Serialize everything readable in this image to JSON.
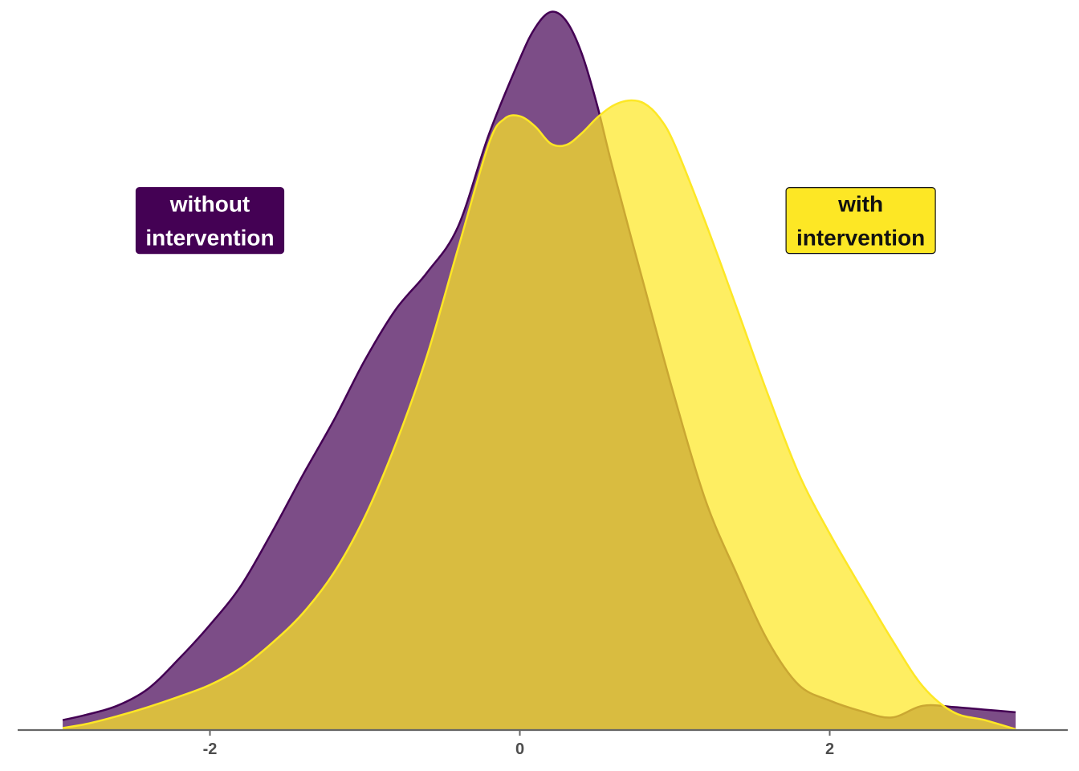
{
  "chart_data": {
    "type": "area",
    "title": "",
    "xlabel": "",
    "ylabel": "",
    "xlim": [
      -3.0,
      3.2
    ],
    "ylim": [
      0,
      0.56
    ],
    "x_ticks": [
      {
        "value": -2,
        "label": "-2"
      },
      {
        "value": 0,
        "label": "0"
      },
      {
        "value": 2,
        "label": "2"
      }
    ],
    "y_ticks_visible": false,
    "grid": false,
    "series": [
      {
        "name": "without intervention",
        "fill": "#440154",
        "fill_opacity": 0.7,
        "stroke": "#440154",
        "x": [
          -2.95,
          -2.8,
          -2.6,
          -2.4,
          -2.2,
          -2.0,
          -1.8,
          -1.6,
          -1.4,
          -1.2,
          -1.0,
          -0.8,
          -0.6,
          -0.4,
          -0.2,
          0.0,
          0.1,
          0.2,
          0.3,
          0.4,
          0.5,
          0.6,
          0.8,
          1.0,
          1.2,
          1.4,
          1.6,
          1.8,
          2.0,
          2.2,
          2.4,
          2.6,
          2.8,
          3.0,
          3.2
        ],
        "y": [
          0.007,
          0.011,
          0.018,
          0.031,
          0.054,
          0.08,
          0.11,
          0.151,
          0.195,
          0.237,
          0.283,
          0.322,
          0.35,
          0.385,
          0.456,
          0.514,
          0.538,
          0.55,
          0.543,
          0.518,
          0.478,
          0.43,
          0.341,
          0.254,
          0.175,
          0.119,
          0.068,
          0.034,
          0.022,
          0.014,
          0.009,
          0.018,
          0.017,
          0.015,
          0.013
        ]
      },
      {
        "name": "with intervention",
        "fill": "#fde725",
        "fill_opacity": 0.72,
        "stroke": "#fde725",
        "x": [
          -2.95,
          -2.8,
          -2.6,
          -2.4,
          -2.2,
          -2.0,
          -1.8,
          -1.6,
          -1.4,
          -1.2,
          -1.0,
          -0.8,
          -0.6,
          -0.4,
          -0.2,
          -0.1,
          0.0,
          0.1,
          0.2,
          0.3,
          0.4,
          0.5,
          0.6,
          0.7,
          0.8,
          0.9,
          1.0,
          1.2,
          1.4,
          1.6,
          1.8,
          2.0,
          2.2,
          2.4,
          2.6,
          2.8,
          3.0,
          3.2
        ],
        "y": [
          0.001,
          0.004,
          0.01,
          0.017,
          0.025,
          0.034,
          0.047,
          0.066,
          0.089,
          0.12,
          0.163,
          0.219,
          0.286,
          0.368,
          0.449,
          0.468,
          0.47,
          0.462,
          0.449,
          0.448,
          0.457,
          0.469,
          0.478,
          0.482,
          0.48,
          0.469,
          0.448,
          0.388,
          0.323,
          0.257,
          0.196,
          0.15,
          0.109,
          0.069,
          0.033,
          0.013,
          0.007,
          0.0
        ]
      }
    ],
    "annotations": [
      {
        "text_line1": "without",
        "text_line2": "intervention",
        "x": -2.0,
        "y": 0.39,
        "fill": "#440154",
        "text_color": "#ffffff",
        "border": "#440154"
      },
      {
        "text_line1": "with",
        "text_line2": "intervention",
        "x": 2.2,
        "y": 0.39,
        "fill": "#fde725",
        "text_color": "#111111",
        "border": "#111111"
      }
    ],
    "legend": "none"
  }
}
